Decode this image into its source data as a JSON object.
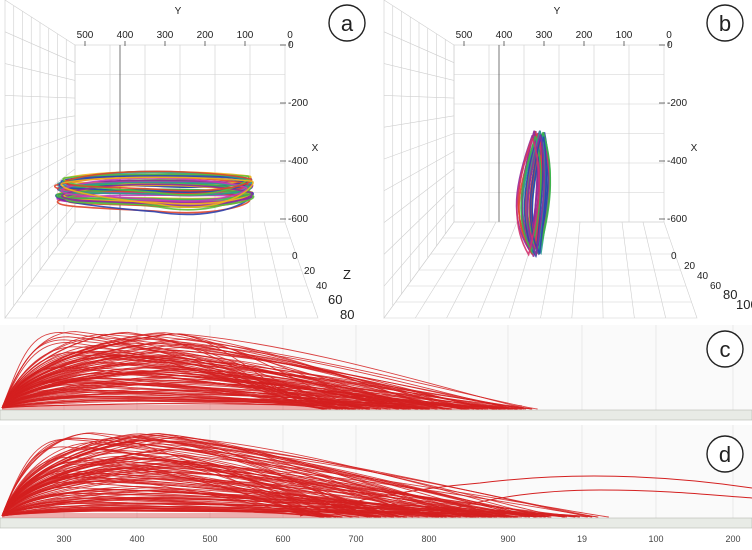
{
  "panels": [
    {
      "id": "a",
      "label": "a"
    },
    {
      "id": "b",
      "label": "b"
    },
    {
      "id": "c",
      "label": "c"
    },
    {
      "id": "d",
      "label": "d"
    }
  ],
  "chart_data": [
    {
      "panel": "a",
      "type": "line",
      "y_axis": {
        "label": "Y",
        "ticks": [
          "500",
          "400",
          "300",
          "200",
          "100",
          "0"
        ]
      },
      "x_axis": {
        "label": "X",
        "ticks": [
          "0",
          "-200",
          "-400",
          "-600"
        ]
      },
      "z_axis": {
        "label": "Z",
        "ticks": [
          "0",
          "20",
          "40",
          "60",
          "80"
        ]
      },
      "grid": true,
      "series_colors": [
        "#e0452a",
        "#f0b21a",
        "#3bb54a",
        "#2a9d8f",
        "#2b44b0",
        "#8e2a9e",
        "#c43bb6",
        "#58c23a"
      ]
    },
    {
      "panel": "b",
      "type": "line",
      "y_axis": {
        "label": "Y",
        "ticks": [
          "500",
          "400",
          "300",
          "200",
          "100",
          "0"
        ]
      },
      "x_axis": {
        "label": "X",
        "ticks": [
          "0",
          "-200",
          "-400",
          "-600"
        ]
      },
      "z_axis": {
        "label": "Z",
        "ticks": [
          "0",
          "20",
          "40",
          "60",
          "80",
          "100"
        ]
      },
      "grid": true,
      "series_colors": [
        "#e0452a",
        "#3bb54a",
        "#2a9d8f",
        "#2b44b0",
        "#8e2a9e",
        "#d1336f"
      ]
    },
    {
      "panel": "c",
      "type": "line",
      "x_ticks": [
        "300",
        "400",
        "500",
        "600",
        "700",
        "800",
        "900",
        "19",
        "100",
        "200"
      ],
      "line_color": "#d42020",
      "grid": true
    },
    {
      "panel": "d",
      "type": "line",
      "x_ticks": [
        "300",
        "400",
        "500",
        "600",
        "700",
        "800",
        "900",
        "19",
        "100",
        "200"
      ],
      "line_color": "#d42020",
      "grid": true
    }
  ]
}
